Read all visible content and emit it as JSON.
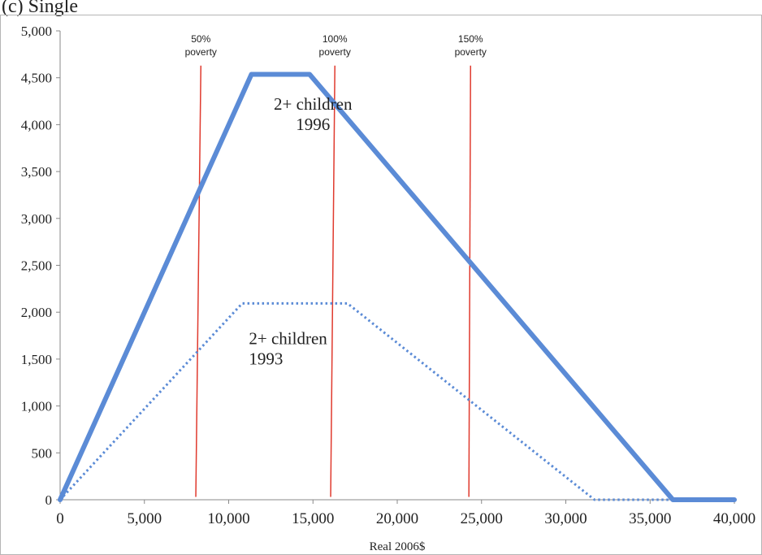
{
  "chart_data": {
    "type": "line",
    "title": "(c) Single",
    "xlabel": "Real 2006$",
    "ylabel": "",
    "xlim": [
      0,
      40000
    ],
    "ylim": [
      0,
      5000
    ],
    "grid": false,
    "legend": "none",
    "x_ticks": [
      0,
      5000,
      10000,
      15000,
      20000,
      25000,
      30000,
      35000,
      40000
    ],
    "x_tick_labels": [
      "0",
      "5,000",
      "10,000",
      "15,000",
      "20,000",
      "25,000",
      "30,000",
      "35,000",
      "40,000"
    ],
    "y_ticks": [
      0,
      500,
      1000,
      1500,
      2000,
      2500,
      3000,
      3500,
      4000,
      4500,
      5000
    ],
    "y_tick_labels": [
      "0",
      "500",
      "1,000",
      "1,500",
      "2,000",
      "2,500",
      "3,000",
      "3,500",
      "4,000",
      "4,500",
      "5,000"
    ],
    "series": [
      {
        "style": "solid",
        "color": "#5B8BD6",
        "points": [
          [
            0,
            0
          ],
          [
            11350,
            4536
          ],
          [
            14800,
            4536
          ],
          [
            36350,
            0
          ],
          [
            40000,
            0
          ]
        ]
      },
      {
        "style": "dotted",
        "color": "#5B8BD6",
        "points": [
          [
            0,
            0
          ],
          [
            10800,
            2094
          ],
          [
            17050,
            2094
          ],
          [
            31700,
            0
          ],
          [
            40000,
            0
          ]
        ]
      }
    ],
    "series_labels": [
      {
        "lines": [
          "2+ children",
          "1996"
        ],
        "x": 15000,
        "y_top": 4160,
        "align": "middle"
      },
      {
        "lines": [
          "2+ children",
          "1993"
        ],
        "x": 11200,
        "y_top": 1660,
        "align": "start"
      }
    ],
    "reference_lines": [
      {
        "label": [
          "50%",
          "poverty"
        ],
        "top": [
          8350,
          4630
        ],
        "bottom": [
          8050,
          30
        ]
      },
      {
        "label": [
          "100%",
          "poverty"
        ],
        "top": [
          16300,
          4630
        ],
        "bottom": [
          16050,
          30
        ]
      },
      {
        "label": [
          "150%",
          "poverty"
        ],
        "top": [
          24350,
          4630
        ],
        "bottom": [
          24250,
          30
        ]
      }
    ],
    "colors": {
      "series": "#5B8BD6",
      "reference": "#E03A2E",
      "axis": "#888888",
      "text": "#222222"
    }
  }
}
